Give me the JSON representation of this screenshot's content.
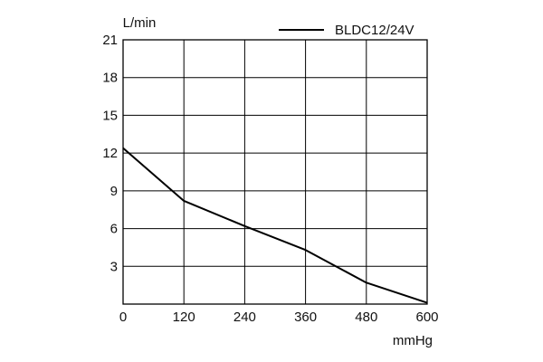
{
  "chart_data": {
    "type": "line",
    "xlabel": "mmHg",
    "ylabel": "L/min",
    "xlim": [
      0,
      600
    ],
    "ylim": [
      0,
      21
    ],
    "x_ticks": [
      0,
      120,
      240,
      360,
      480,
      600
    ],
    "y_ticks": [
      3,
      6,
      9,
      12,
      15,
      18,
      21
    ],
    "grid": true,
    "legend_position": "top-right",
    "series": [
      {
        "name": "BLDC12/24V",
        "color": "#000000",
        "x": [
          0,
          120,
          240,
          360,
          480,
          600
        ],
        "y": [
          12.4,
          8.2,
          6.2,
          4.3,
          1.7,
          0.1
        ]
      }
    ]
  }
}
